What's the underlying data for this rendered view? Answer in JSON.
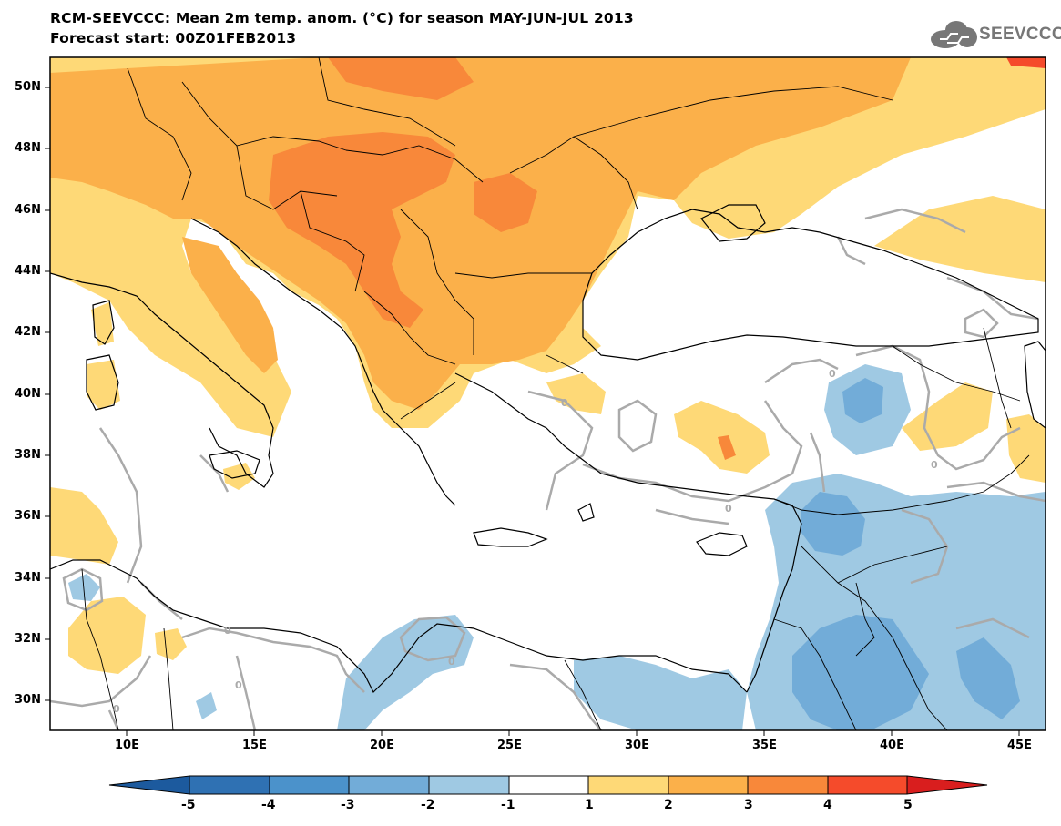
{
  "header": {
    "title": "RCM-SEEVCCC: Mean 2m temp. anom. (°C) for season MAY-JUN-JUL 2013",
    "subtitle": "Forecast start: 00Z01FEB2013"
  },
  "logo": {
    "text": "SEEVCCC",
    "icon": "cloud-icon"
  },
  "map": {
    "lon_range": [
      7,
      46
    ],
    "lat_range": [
      29,
      51
    ],
    "lat_labels": [
      "50N",
      "48N",
      "46N",
      "44N",
      "42N",
      "40N",
      "38N",
      "36N",
      "34N",
      "32N",
      "30N"
    ],
    "lon_labels": [
      "10E",
      "15E",
      "20E",
      "25E",
      "30E",
      "35E",
      "40E",
      "45E"
    ],
    "contour_label": "0",
    "colors": {
      "land_outline": "#000000",
      "contour": "#aaaaaa",
      "sea": "#ffffff"
    }
  },
  "colorbar": {
    "labels": [
      "-5",
      "-4",
      "-3",
      "-2",
      "-1",
      "1",
      "2",
      "3",
      "4",
      "5"
    ],
    "colors": [
      "#1c5a9e",
      "#2f71b3",
      "#4b92cb",
      "#72acd8",
      "#9fc9e3",
      "#ffffff",
      "#fed977",
      "#fbb04a",
      "#f8883a",
      "#f54b2b",
      "#d91e1e"
    ],
    "boundaries": [
      -5,
      -4,
      -3,
      -2,
      -1,
      1,
      2,
      3,
      4,
      5
    ]
  }
}
